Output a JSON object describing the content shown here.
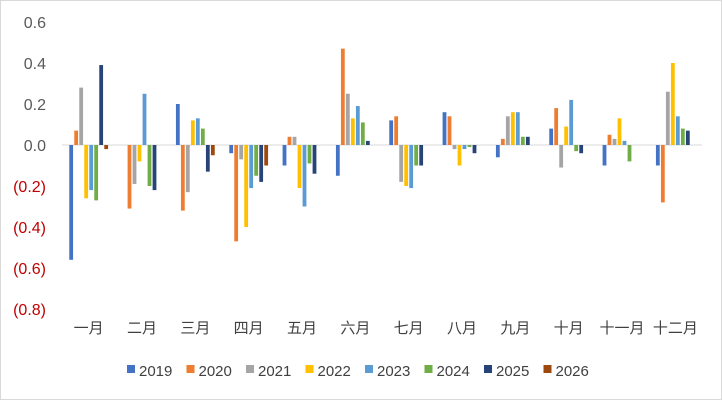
{
  "chart_data": {
    "type": "bar",
    "title": "",
    "xlabel": "",
    "ylabel": "",
    "ylim": [
      -0.8,
      0.6
    ],
    "yticks": [
      {
        "value": 0.6,
        "label": "0.6"
      },
      {
        "value": 0.4,
        "label": "0.4"
      },
      {
        "value": 0.2,
        "label": "0.2"
      },
      {
        "value": 0.0,
        "label": "0.0"
      },
      {
        "value": -0.2,
        "label": "(0.2)"
      },
      {
        "value": -0.4,
        "label": "(0.4)"
      },
      {
        "value": -0.6,
        "label": "(0.6)"
      },
      {
        "value": -0.8,
        "label": "(0.8)"
      }
    ],
    "grid": false,
    "legend_position": "bottom",
    "categories": [
      "一月",
      "二月",
      "三月",
      "四月",
      "五月",
      "六月",
      "七月",
      "八月",
      "九月",
      "十月",
      "十一月",
      "十二月"
    ],
    "series": [
      {
        "name": "2019",
        "color": "#4472C4",
        "values": [
          -0.56,
          0.0,
          0.2,
          -0.04,
          -0.1,
          -0.15,
          0.12,
          0.16,
          -0.06,
          0.08,
          -0.1,
          -0.1
        ]
      },
      {
        "name": "2020",
        "color": "#ED7D31",
        "values": [
          0.07,
          -0.31,
          -0.32,
          -0.47,
          0.04,
          0.47,
          0.14,
          0.14,
          0.03,
          0.18,
          0.05,
          -0.28
        ]
      },
      {
        "name": "2021",
        "color": "#A5A5A5",
        "values": [
          0.28,
          -0.19,
          -0.23,
          -0.07,
          0.04,
          0.25,
          -0.18,
          -0.02,
          0.14,
          -0.11,
          0.03,
          0.26
        ]
      },
      {
        "name": "2022",
        "color": "#FFC000",
        "values": [
          -0.26,
          -0.08,
          0.12,
          -0.4,
          -0.21,
          0.13,
          -0.2,
          -0.1,
          0.16,
          0.09,
          0.13,
          0.4
        ]
      },
      {
        "name": "2023",
        "color": "#5B9BD5",
        "values": [
          -0.22,
          0.25,
          0.13,
          -0.21,
          -0.3,
          0.19,
          -0.21,
          -0.02,
          0.16,
          0.22,
          0.02,
          0.14
        ]
      },
      {
        "name": "2024",
        "color": "#70AD47",
        "values": [
          -0.27,
          -0.2,
          0.08,
          -0.15,
          -0.09,
          0.11,
          -0.1,
          -0.01,
          0.04,
          -0.03,
          -0.08,
          0.08
        ]
      },
      {
        "name": "2025",
        "color": "#264478",
        "values": [
          0.39,
          -0.22,
          -0.13,
          -0.18,
          -0.14,
          0.02,
          -0.1,
          -0.04,
          0.04,
          -0.04,
          0.0,
          0.07
        ]
      },
      {
        "name": "2026",
        "color": "#9E480E",
        "values": [
          -0.02,
          0.0,
          -0.05,
          -0.1,
          0.0,
          0.0,
          0.0,
          0.0,
          0.0,
          0.0,
          0.0,
          0.0
        ]
      }
    ]
  }
}
